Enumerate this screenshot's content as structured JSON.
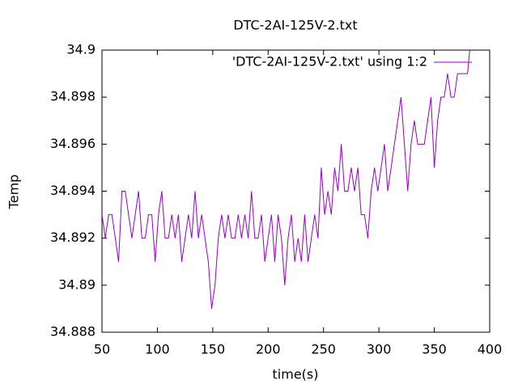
{
  "chart_data": {
    "type": "line",
    "title": "DTC-2AI-125V-2.txt",
    "x_label": "time(s)",
    "y_label": "Temp",
    "x": [
      50,
      53,
      56,
      59,
      62,
      65,
      68,
      71,
      74,
      77,
      80,
      83,
      86,
      89,
      92,
      95,
      98,
      101,
      104,
      107,
      110,
      113,
      116,
      119,
      122,
      125,
      128,
      131,
      134,
      137,
      140,
      143,
      146,
      149,
      152,
      155,
      158,
      161,
      164,
      167,
      170,
      173,
      176,
      179,
      182,
      185,
      188,
      191,
      194,
      197,
      200,
      203,
      206,
      209,
      212,
      215,
      218,
      221,
      224,
      227,
      230,
      233,
      236,
      239,
      242,
      245,
      248,
      251,
      254,
      257,
      260,
      263,
      266,
      269,
      272,
      275,
      278,
      281,
      284,
      287,
      290,
      293,
      296,
      299,
      302,
      305,
      308,
      311,
      314,
      317,
      320,
      323,
      326,
      329,
      332,
      335,
      338,
      341,
      344,
      347,
      350,
      353,
      356,
      359,
      362,
      365,
      368,
      371,
      374,
      377,
      380,
      382
    ],
    "series": [
      {
        "name": "'DTC-2AI-125V-2.txt' using 1:2",
        "color": "#9400d3",
        "values": [
          34.893,
          34.892,
          34.893,
          34.893,
          34.892,
          34.891,
          34.894,
          34.894,
          34.893,
          34.892,
          34.893,
          34.894,
          34.892,
          34.892,
          34.893,
          34.893,
          34.891,
          34.893,
          34.894,
          34.892,
          34.892,
          34.893,
          34.892,
          34.893,
          34.891,
          34.892,
          34.893,
          34.892,
          34.894,
          34.892,
          34.893,
          34.892,
          34.891,
          34.889,
          34.89,
          34.892,
          34.893,
          34.892,
          34.893,
          34.892,
          34.892,
          34.893,
          34.892,
          34.893,
          34.892,
          34.894,
          34.892,
          34.892,
          34.893,
          34.891,
          34.892,
          34.893,
          34.891,
          34.893,
          34.892,
          34.89,
          34.892,
          34.893,
          34.891,
          34.892,
          34.891,
          34.893,
          34.891,
          34.892,
          34.893,
          34.892,
          34.895,
          34.893,
          34.894,
          34.893,
          34.895,
          34.894,
          34.896,
          34.894,
          34.894,
          34.895,
          34.894,
          34.895,
          34.893,
          34.893,
          34.892,
          34.894,
          34.895,
          34.894,
          34.895,
          34.896,
          34.894,
          34.895,
          34.896,
          34.897,
          34.898,
          34.896,
          34.894,
          34.896,
          34.897,
          34.896,
          34.896,
          34.896,
          34.897,
          34.898,
          34.895,
          34.897,
          34.898,
          34.898,
          34.899,
          34.898,
          34.898,
          34.899,
          34.899,
          34.899,
          34.899,
          34.9
        ]
      }
    ],
    "xlim": [
      50,
      400
    ],
    "xticks": [
      50,
      100,
      150,
      200,
      250,
      300,
      350,
      400
    ],
    "ylim": [
      34.888,
      34.9
    ],
    "yticks": [
      34.888,
      34.89,
      34.892,
      34.894,
      34.896,
      34.898,
      34.9
    ],
    "legend": "top-right"
  }
}
